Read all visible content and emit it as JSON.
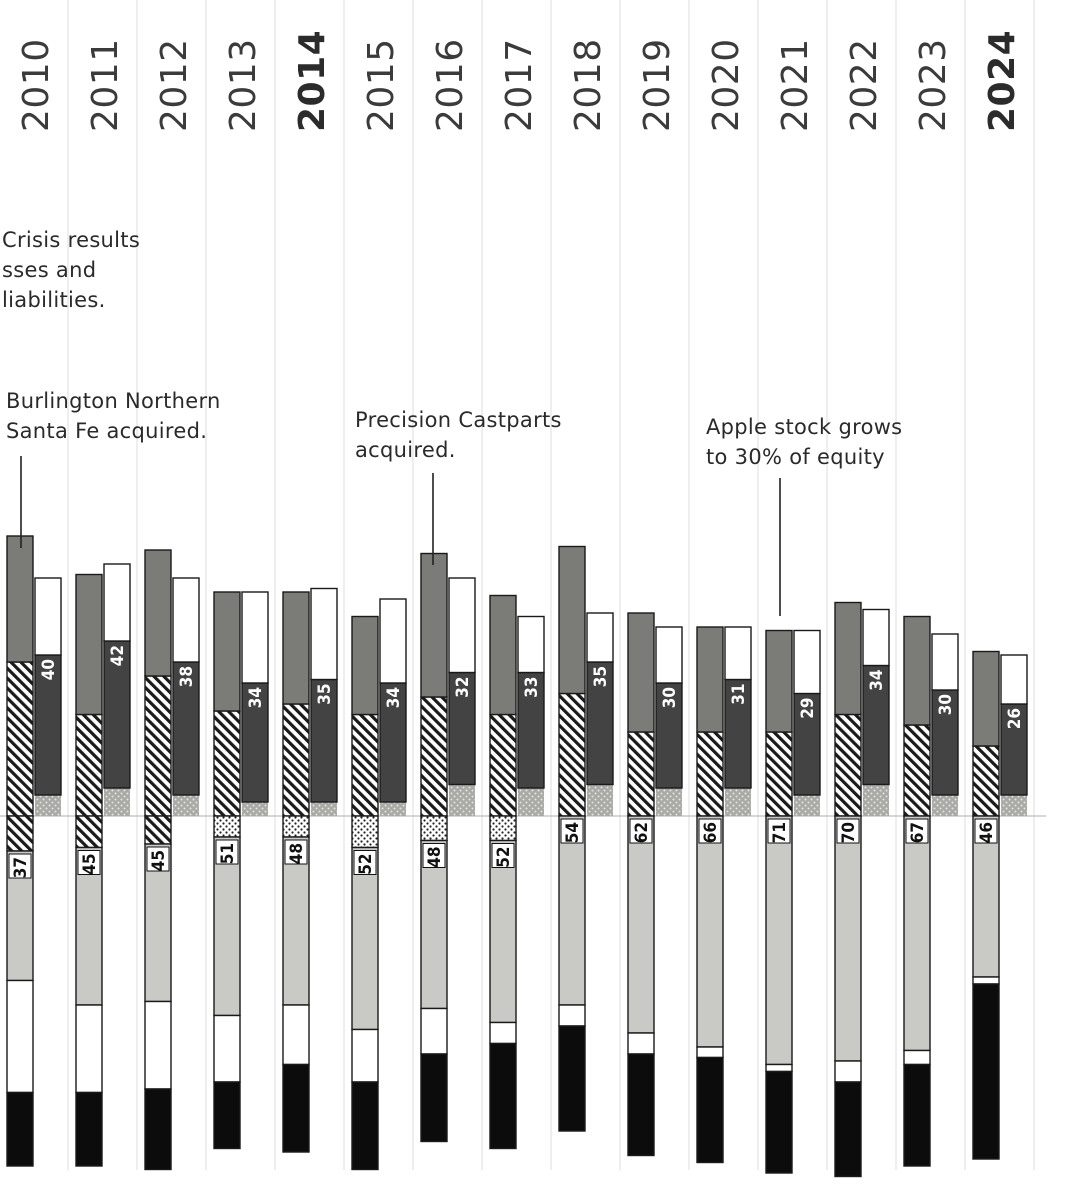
{
  "chart_data": {
    "type": "bar",
    "title": "",
    "categories": [
      "2010",
      "2011",
      "2012",
      "2013",
      "2014",
      "2015",
      "2016",
      "2017",
      "2018",
      "2019",
      "2020",
      "2021",
      "2022",
      "2023",
      "2024"
    ],
    "highlighted_years": [
      "2014",
      "2024"
    ],
    "left_column_upper": {
      "description": "left bar of each pair, stacked above and below baseline",
      "series": [
        {
          "name": "gray-top",
          "values": [
            36,
            40,
            36,
            34,
            32,
            28,
            41,
            34,
            42,
            34,
            30,
            29,
            32,
            31,
            27
          ]
        },
        {
          "name": "hatched",
          "values": [
            44,
            29,
            40,
            30,
            32,
            29,
            34,
            29,
            35,
            24,
            24,
            24,
            29,
            26,
            20
          ]
        },
        {
          "name": "hatched-below",
          "values": [
            10,
            9,
            8,
            0,
            0,
            0,
            0,
            0,
            0,
            0,
            0,
            0,
            0,
            0,
            0
          ]
        },
        {
          "name": "dotted-below",
          "values": [
            0,
            0,
            0,
            6,
            6,
            9,
            7,
            7,
            0,
            0,
            0,
            0,
            0,
            0,
            0
          ]
        }
      ]
    },
    "right_column_upper": {
      "description": "right bar of each pair above baseline",
      "labeled_series": "dark",
      "series": [
        {
          "name": "white-top",
          "values": [
            22,
            22,
            24,
            26,
            26,
            24,
            27,
            16,
            14,
            16,
            15,
            18,
            16,
            16,
            14
          ]
        },
        {
          "name": "dark",
          "values": [
            40,
            42,
            38,
            34,
            35,
            34,
            32,
            33,
            35,
            30,
            31,
            29,
            34,
            30,
            26
          ]
        },
        {
          "name": "dotted-small",
          "values": [
            6,
            8,
            6,
            4,
            4,
            4,
            9,
            8,
            9,
            8,
            8,
            6,
            9,
            6,
            6
          ]
        }
      ]
    },
    "below_baseline": {
      "labeled_series": "light-gray",
      "series": [
        {
          "name": "light-gray",
          "values": [
            37,
            45,
            45,
            51,
            48,
            52,
            48,
            52,
            54,
            62,
            66,
            71,
            70,
            67,
            46
          ]
        },
        {
          "name": "white",
          "values": [
            32,
            25,
            25,
            19,
            17,
            15,
            13,
            6,
            6,
            6,
            3,
            2,
            6,
            4,
            2
          ]
        },
        {
          "name": "black",
          "values": [
            21,
            21,
            23,
            19,
            25,
            25,
            25,
            30,
            30,
            29,
            30,
            29,
            27,
            29,
            50
          ]
        }
      ]
    },
    "annotations": [
      {
        "year": "2010",
        "lines": [
          "Crisis results",
          "sses and",
          "liabilities."
        ]
      },
      {
        "year": "2010",
        "lines": [
          "Burlington Northern",
          "Santa Fe acquired."
        ]
      },
      {
        "year": "2016",
        "lines": [
          "Precision Castparts",
          "acquired."
        ]
      },
      {
        "year": "2021",
        "lines": [
          "Apple stock grows",
          "to 30% of equity"
        ]
      }
    ],
    "legend": "none",
    "grid": "vertical column separators"
  },
  "colors": {
    "gray_top": "#7b7b78",
    "dark": "#434343",
    "light_gray": "#c9c9c6",
    "black": "#0c0c0c",
    "white": "#ffffff",
    "outline": "#1a1a1a",
    "grid": "#dcdcdc"
  }
}
